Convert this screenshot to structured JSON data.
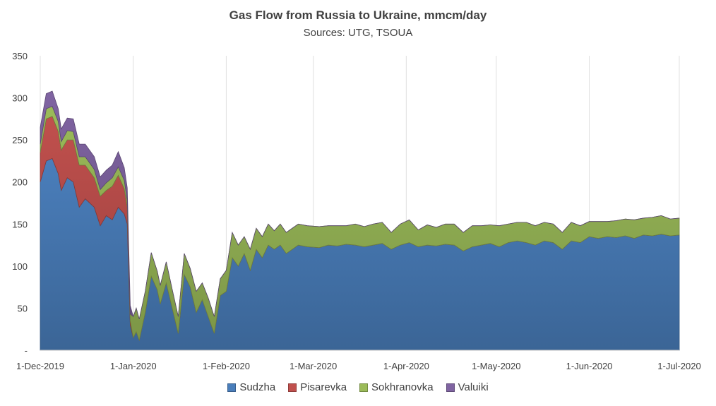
{
  "chart_data": {
    "type": "area",
    "stacked": true,
    "title": "Gas Flow from Russia to Ukraine, mmcm/day",
    "subtitle": "Sources: UTG, TSOUA",
    "ylim": [
      0,
      350
    ],
    "yticks": [
      0,
      50,
      100,
      150,
      200,
      250,
      300,
      350
    ],
    "ytick_labels": [
      "-",
      "50",
      "100",
      "150",
      "200",
      "250",
      "300",
      "350"
    ],
    "x_start": "2019-12-01",
    "x_end": "2020-07-01",
    "xticks": [
      "2019-12-01",
      "2020-01-01",
      "2020-02-01",
      "2020-03-01",
      "2020-04-01",
      "2020-05-01",
      "2020-06-01",
      "2020-07-01"
    ],
    "xtick_labels": [
      "1-Dec-2019",
      "1-Jan-2020",
      "1-Feb-2020",
      "1-Mar-2020",
      "1-Apr-2020",
      "1-May-2020",
      "1-Jun-2020",
      "1-Jul-2020"
    ],
    "grid": "vertical",
    "legend_position": "bottom",
    "series": [
      {
        "name": "Sudzha",
        "color": "#4a7ebb",
        "points": [
          [
            "2019-12-01",
            200
          ],
          [
            "2019-12-03",
            225
          ],
          [
            "2019-12-05",
            228
          ],
          [
            "2019-12-07",
            210
          ],
          [
            "2019-12-08",
            190
          ],
          [
            "2019-12-10",
            205
          ],
          [
            "2019-12-12",
            200
          ],
          [
            "2019-12-14",
            170
          ],
          [
            "2019-12-16",
            180
          ],
          [
            "2019-12-19",
            170
          ],
          [
            "2019-12-21",
            148
          ],
          [
            "2019-12-23",
            160
          ],
          [
            "2019-12-25",
            155
          ],
          [
            "2019-12-27",
            170
          ],
          [
            "2019-12-29",
            162
          ],
          [
            "2019-12-30",
            150
          ],
          [
            "2019-12-31",
            30
          ],
          [
            "2020-01-01",
            15
          ],
          [
            "2020-01-02",
            22
          ],
          [
            "2020-01-03",
            12
          ],
          [
            "2020-01-05",
            45
          ],
          [
            "2020-01-07",
            88
          ],
          [
            "2020-01-09",
            72
          ],
          [
            "2020-01-10",
            55
          ],
          [
            "2020-01-12",
            80
          ],
          [
            "2020-01-14",
            50
          ],
          [
            "2020-01-16",
            20
          ],
          [
            "2020-01-18",
            90
          ],
          [
            "2020-01-20",
            75
          ],
          [
            "2020-01-22",
            45
          ],
          [
            "2020-01-24",
            60
          ],
          [
            "2020-01-26",
            40
          ],
          [
            "2020-01-28",
            20
          ],
          [
            "2020-01-30",
            65
          ],
          [
            "2020-02-01",
            70
          ],
          [
            "2020-02-03",
            110
          ],
          [
            "2020-02-05",
            100
          ],
          [
            "2020-02-07",
            115
          ],
          [
            "2020-02-09",
            95
          ],
          [
            "2020-02-11",
            120
          ],
          [
            "2020-02-13",
            110
          ],
          [
            "2020-02-15",
            125
          ],
          [
            "2020-02-17",
            120
          ],
          [
            "2020-02-19",
            125
          ],
          [
            "2020-02-21",
            115
          ],
          [
            "2020-02-23",
            120
          ],
          [
            "2020-02-25",
            125
          ],
          [
            "2020-02-28",
            123
          ],
          [
            "2020-03-03",
            122
          ],
          [
            "2020-03-06",
            125
          ],
          [
            "2020-03-09",
            124
          ],
          [
            "2020-03-12",
            126
          ],
          [
            "2020-03-15",
            125
          ],
          [
            "2020-03-18",
            123
          ],
          [
            "2020-03-21",
            125
          ],
          [
            "2020-03-24",
            127
          ],
          [
            "2020-03-27",
            120
          ],
          [
            "2020-03-30",
            125
          ],
          [
            "2020-04-02",
            128
          ],
          [
            "2020-04-05",
            123
          ],
          [
            "2020-04-08",
            125
          ],
          [
            "2020-04-11",
            124
          ],
          [
            "2020-04-14",
            126
          ],
          [
            "2020-04-17",
            125
          ],
          [
            "2020-04-20",
            118
          ],
          [
            "2020-04-23",
            123
          ],
          [
            "2020-04-26",
            125
          ],
          [
            "2020-04-29",
            127
          ],
          [
            "2020-05-02",
            123
          ],
          [
            "2020-05-05",
            128
          ],
          [
            "2020-05-08",
            130
          ],
          [
            "2020-05-11",
            128
          ],
          [
            "2020-05-14",
            125
          ],
          [
            "2020-05-17",
            130
          ],
          [
            "2020-05-20",
            128
          ],
          [
            "2020-05-23",
            120
          ],
          [
            "2020-05-26",
            130
          ],
          [
            "2020-05-29",
            128
          ],
          [
            "2020-06-01",
            135
          ],
          [
            "2020-06-04",
            133
          ],
          [
            "2020-06-07",
            135
          ],
          [
            "2020-06-10",
            134
          ],
          [
            "2020-06-13",
            136
          ],
          [
            "2020-06-16",
            133
          ],
          [
            "2020-06-19",
            137
          ],
          [
            "2020-06-22",
            136
          ],
          [
            "2020-06-25",
            138
          ],
          [
            "2020-06-28",
            136
          ],
          [
            "2020-07-01",
            137
          ]
        ]
      },
      {
        "name": "Pisarevka",
        "color": "#c0504d",
        "points": [
          [
            "2019-12-01",
            35
          ],
          [
            "2019-12-03",
            50
          ],
          [
            "2019-12-05",
            50
          ],
          [
            "2019-12-07",
            50
          ],
          [
            "2019-12-08",
            48
          ],
          [
            "2019-12-10",
            45
          ],
          [
            "2019-12-12",
            50
          ],
          [
            "2019-12-14",
            50
          ],
          [
            "2019-12-16",
            40
          ],
          [
            "2019-12-19",
            35
          ],
          [
            "2019-12-21",
            35
          ],
          [
            "2019-12-23",
            30
          ],
          [
            "2019-12-25",
            40
          ],
          [
            "2019-12-27",
            38
          ],
          [
            "2019-12-29",
            30
          ],
          [
            "2019-12-30",
            20
          ],
          [
            "2019-12-31",
            5
          ],
          [
            "2020-01-01",
            0
          ],
          [
            "2020-07-01",
            0
          ]
        ]
      },
      {
        "name": "Sokhranovka",
        "color": "#9bbb59",
        "points": [
          [
            "2019-12-01",
            10
          ],
          [
            "2019-12-03",
            12
          ],
          [
            "2019-12-05",
            12
          ],
          [
            "2019-12-07",
            12
          ],
          [
            "2019-12-08",
            10
          ],
          [
            "2019-12-10",
            11
          ],
          [
            "2019-12-12",
            10
          ],
          [
            "2019-12-14",
            10
          ],
          [
            "2019-12-16",
            10
          ],
          [
            "2019-12-19",
            10
          ],
          [
            "2019-12-21",
            8
          ],
          [
            "2019-12-23",
            9
          ],
          [
            "2019-12-25",
            10
          ],
          [
            "2019-12-27",
            10
          ],
          [
            "2019-12-29",
            10
          ],
          [
            "2019-12-30",
            8
          ],
          [
            "2019-12-31",
            8
          ],
          [
            "2020-01-01",
            25
          ],
          [
            "2020-01-02",
            28
          ],
          [
            "2020-01-03",
            25
          ],
          [
            "2020-01-05",
            25
          ],
          [
            "2020-01-07",
            28
          ],
          [
            "2020-01-09",
            22
          ],
          [
            "2020-01-10",
            22
          ],
          [
            "2020-01-12",
            25
          ],
          [
            "2020-01-14",
            22
          ],
          [
            "2020-01-16",
            20
          ],
          [
            "2020-01-18",
            25
          ],
          [
            "2020-01-20",
            22
          ],
          [
            "2020-01-22",
            25
          ],
          [
            "2020-01-24",
            20
          ],
          [
            "2020-01-26",
            22
          ],
          [
            "2020-01-28",
            20
          ],
          [
            "2020-01-30",
            20
          ],
          [
            "2020-02-01",
            25
          ],
          [
            "2020-02-03",
            30
          ],
          [
            "2020-02-05",
            25
          ],
          [
            "2020-02-07",
            20
          ],
          [
            "2020-02-09",
            25
          ],
          [
            "2020-02-11",
            25
          ],
          [
            "2020-02-13",
            25
          ],
          [
            "2020-02-15",
            25
          ],
          [
            "2020-02-17",
            22
          ],
          [
            "2020-02-19",
            25
          ],
          [
            "2020-02-21",
            25
          ],
          [
            "2020-02-23",
            25
          ],
          [
            "2020-02-25",
            25
          ],
          [
            "2020-02-28",
            25
          ],
          [
            "2020-03-03",
            25
          ],
          [
            "2020-03-06",
            23
          ],
          [
            "2020-03-09",
            24
          ],
          [
            "2020-03-12",
            22
          ],
          [
            "2020-03-15",
            25
          ],
          [
            "2020-03-18",
            24
          ],
          [
            "2020-03-21",
            25
          ],
          [
            "2020-03-24",
            25
          ],
          [
            "2020-03-27",
            20
          ],
          [
            "2020-03-30",
            25
          ],
          [
            "2020-04-02",
            27
          ],
          [
            "2020-04-05",
            20
          ],
          [
            "2020-04-08",
            24
          ],
          [
            "2020-04-11",
            22
          ],
          [
            "2020-04-14",
            24
          ],
          [
            "2020-04-17",
            25
          ],
          [
            "2020-04-20",
            22
          ],
          [
            "2020-04-23",
            25
          ],
          [
            "2020-04-26",
            23
          ],
          [
            "2020-04-29",
            22
          ],
          [
            "2020-05-02",
            25
          ],
          [
            "2020-05-05",
            22
          ],
          [
            "2020-05-08",
            22
          ],
          [
            "2020-05-11",
            24
          ],
          [
            "2020-05-14",
            23
          ],
          [
            "2020-05-17",
            22
          ],
          [
            "2020-05-20",
            22
          ],
          [
            "2020-05-23",
            20
          ],
          [
            "2020-05-26",
            22
          ],
          [
            "2020-05-29",
            20
          ],
          [
            "2020-06-01",
            18
          ],
          [
            "2020-06-04",
            20
          ],
          [
            "2020-06-07",
            18
          ],
          [
            "2020-06-10",
            20
          ],
          [
            "2020-06-13",
            20
          ],
          [
            "2020-06-16",
            22
          ],
          [
            "2020-06-19",
            20
          ],
          [
            "2020-06-22",
            22
          ],
          [
            "2020-06-25",
            22
          ],
          [
            "2020-06-28",
            20
          ],
          [
            "2020-07-01",
            20
          ]
        ]
      },
      {
        "name": "Valuiki",
        "color": "#8064a2",
        "points": [
          [
            "2019-12-01",
            20
          ],
          [
            "2019-12-03",
            18
          ],
          [
            "2019-12-05",
            18
          ],
          [
            "2019-12-07",
            15
          ],
          [
            "2019-12-08",
            15
          ],
          [
            "2019-12-10",
            15
          ],
          [
            "2019-12-12",
            15
          ],
          [
            "2019-12-14",
            15
          ],
          [
            "2019-12-16",
            15
          ],
          [
            "2019-12-19",
            15
          ],
          [
            "2019-12-21",
            15
          ],
          [
            "2019-12-23",
            15
          ],
          [
            "2019-12-25",
            15
          ],
          [
            "2019-12-27",
            18
          ],
          [
            "2019-12-29",
            15
          ],
          [
            "2019-12-30",
            15
          ],
          [
            "2019-12-31",
            10
          ],
          [
            "2020-01-01",
            0
          ],
          [
            "2020-07-01",
            0
          ]
        ]
      }
    ]
  }
}
